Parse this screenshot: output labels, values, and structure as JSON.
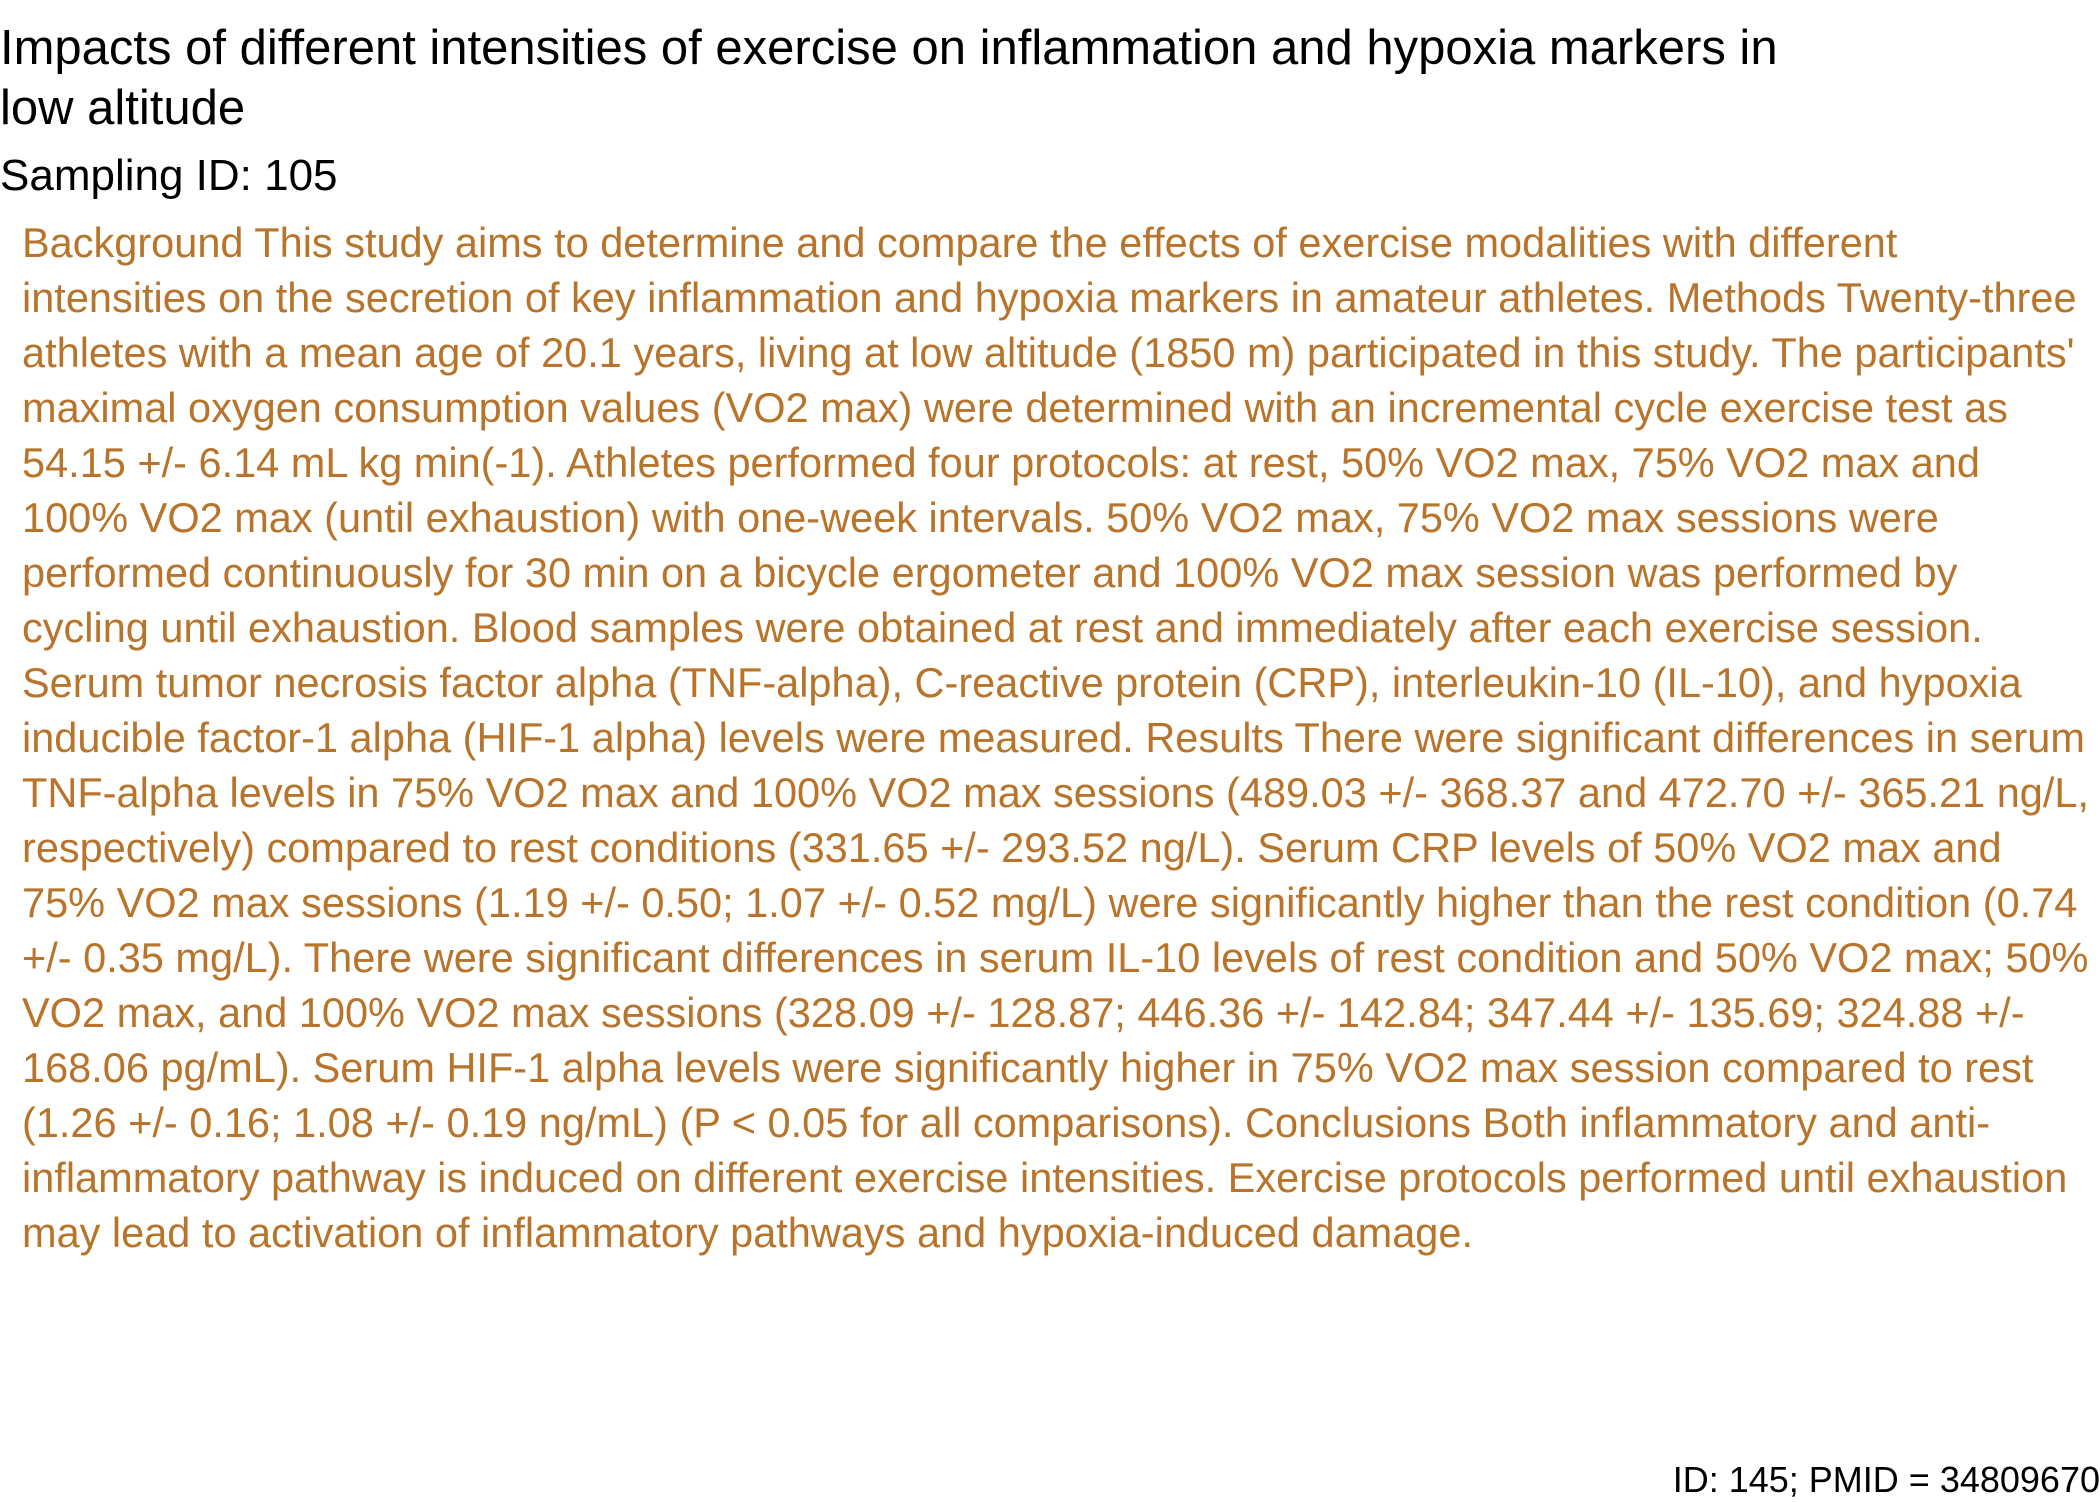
{
  "document": {
    "title": "Impacts of different intensities of exercise on inflammation and hypoxia markers in low altitude",
    "sampling_label": "Sampling ID: 105",
    "abstract": "Background This study aims to determine and compare the effects of exercise modalities with different intensities on the secretion of key inflammation and hypoxia markers in amateur athletes. Methods Twenty-three athletes with a mean age of 20.1 years, living at low altitude (1850 m) participated in this study. The participants' maximal oxygen consumption values (VO2 max) were determined with an incremental cycle exercise test as 54.15 +/- 6.14 mL kg min(-1). Athletes performed four protocols: at rest, 50% VO2 max, 75% VO2 max and 100% VO2 max (until exhaustion) with one-week intervals. 50% VO2 max, 75% VO2 max sessions were performed continuously for 30 min on a bicycle ergometer and 100% VO2 max session was performed by cycling until exhaustion. Blood samples were obtained at rest and immediately after each exercise session. Serum tumor necrosis factor alpha (TNF-alpha), C-reactive protein (CRP), interleukin-10 (IL-10), and hypoxia inducible factor-1 alpha (HIF-1 alpha) levels were measured. Results There were significant differences in serum TNF-alpha levels in 75% VO2 max and 100% VO2 max sessions (489.03 +/- 368.37 and 472.70 +/- 365.21 ng/L, respectively) compared to rest conditions (331.65 +/- 293.52 ng/L). Serum CRP levels of 50% VO2 max and 75% VO2 max sessions (1.19 +/- 0.50; 1.07 +/- 0.52 mg/L) were significantly higher than the rest condition (0.74 +/- 0.35 mg/L). There were significant differences in serum IL-10 levels of rest condition and 50% VO2 max; 50% VO2 max, and 100% VO2 max sessions (328.09 +/- 128.87; 446.36 +/- 142.84; 347.44 +/- 135.69; 324.88 +/- 168.06 pg/mL). Serum HIF-1 alpha levels were significantly higher in 75% VO2 max session compared to rest (1.26 +/- 0.16; 1.08 +/- 0.19 ng/mL) (P < 0.05 for all comparisons). Conclusions Both inflammatory and anti-inflammatory pathway is induced on different exercise intensities. Exercise protocols performed until exhaustion may lead to activation of inflammatory pathways and hypoxia-induced damage.",
    "footer_id": "ID: 145; PMID = 34809670"
  },
  "colors": {
    "abstract_text": "#b8742a",
    "heading_text": "#000000",
    "background": "#ffffff"
  }
}
